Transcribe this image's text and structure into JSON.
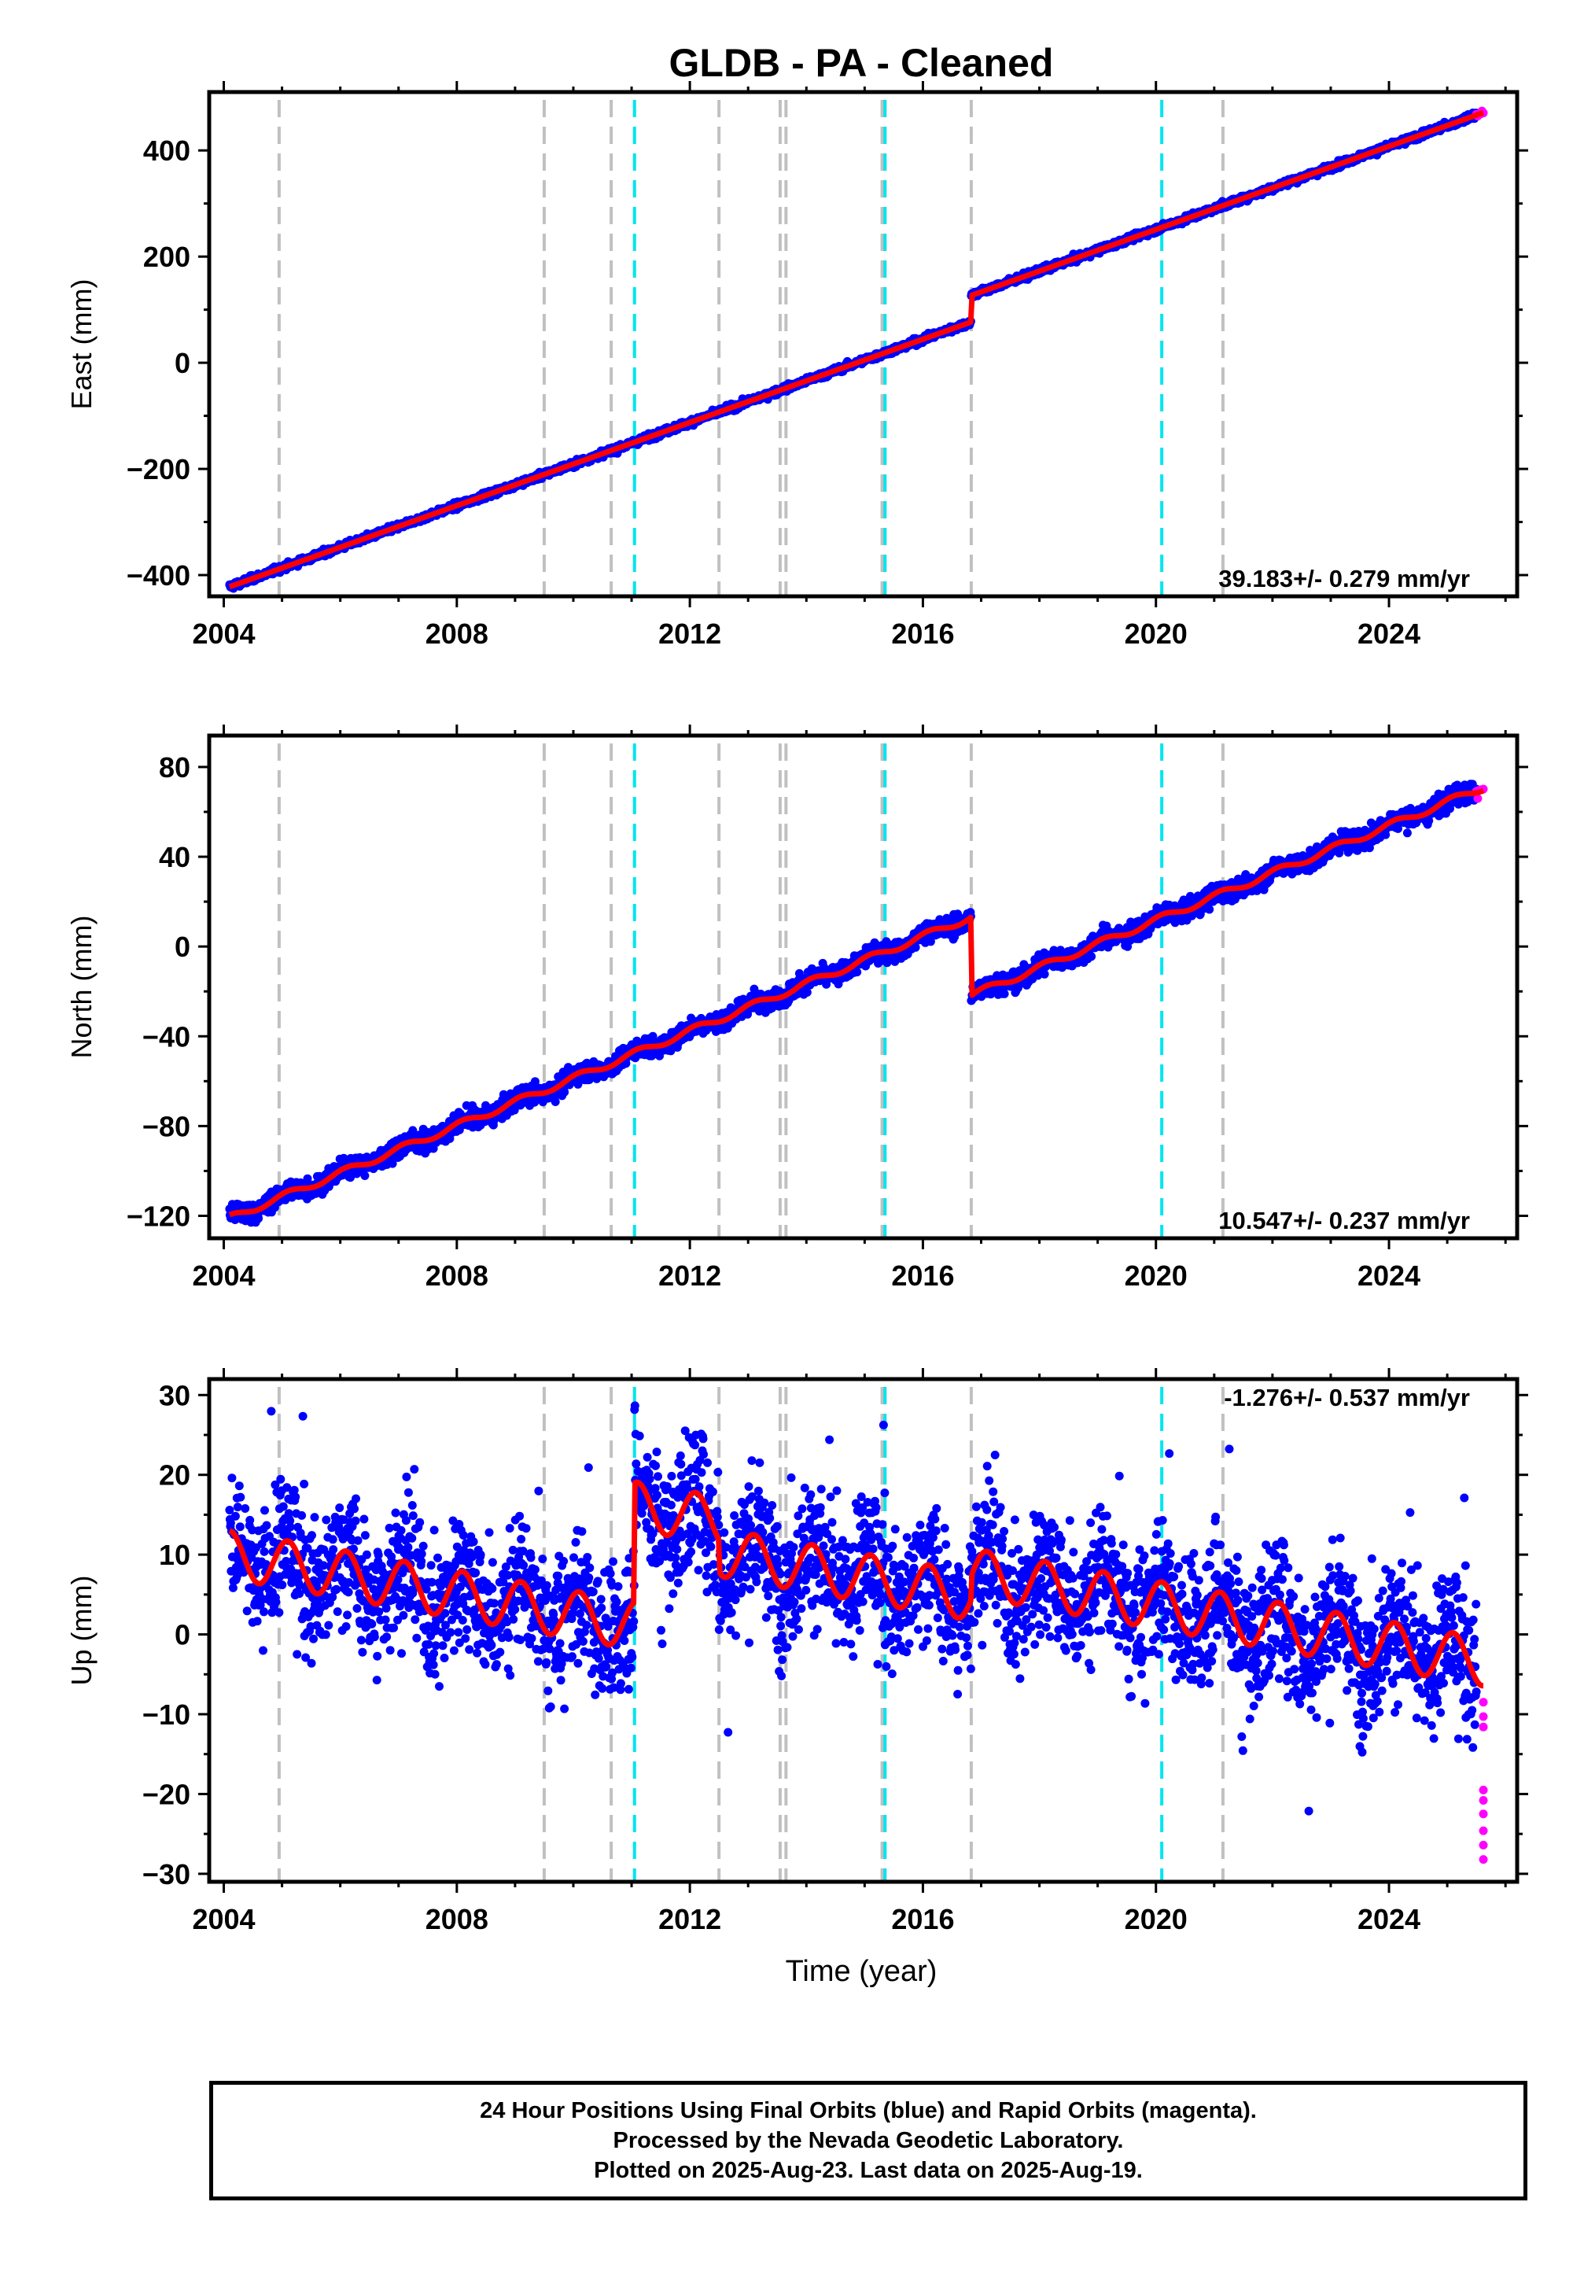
{
  "title": "GLDB  - PA - Cleaned",
  "xlabel": "Time (year)",
  "footer": {
    "line1": "24 Hour Positions Using Final Orbits (blue) and Rapid Orbits (magenta).",
    "line2": "Processed by the Nevada Geodetic Laboratory.",
    "line3": "Plotted on 2025-Aug-23. Last data on 2025-Aug-19."
  },
  "colors": {
    "final_orbits": "#0000ff",
    "rapid_orbits": "#ff00ff",
    "model": "#ff0000",
    "event_gray": "#c0c0c0",
    "event_cyan": "#00e5ee"
  },
  "events": {
    "gray": [
      2004.95,
      2009.5,
      2010.65,
      2012.5,
      2013.55,
      2013.65,
      2015.3,
      2016.83,
      2021.15
    ],
    "cyan": [
      2011.05,
      2015.35,
      2020.1
    ]
  },
  "chart_data": [
    {
      "type": "scatter",
      "name": "East",
      "ylabel": "East (mm)",
      "rate_label": "39.183+/- 0.279 mm/yr",
      "xlim": [
        2003.75,
        2026.2
      ],
      "ylim": [
        -440,
        510
      ],
      "xticks": [
        2004,
        2008,
        2012,
        2016,
        2020,
        2024
      ],
      "yticks": [
        -400,
        -200,
        0,
        200,
        400
      ],
      "ytick_labels": [
        "−400",
        "−200",
        "0",
        "200",
        "400"
      ],
      "x_start": 2004.1,
      "x_end": 2025.62,
      "rate": 39.183,
      "y_at_start": -422,
      "offsets": [
        {
          "x": 2016.83,
          "dy": 50
        }
      ],
      "seasonal_amplitude": 0,
      "scatter_sd": 3,
      "outlier_range": 0,
      "rapid_tail": [
        2025.5,
        2025.62
      ]
    },
    {
      "type": "scatter",
      "name": "North",
      "ylabel": "North (mm)",
      "rate_label": "10.547+/- 0.237 mm/yr",
      "xlim": [
        2003.75,
        2026.2
      ],
      "ylim": [
        -130,
        94
      ],
      "xticks": [
        2004,
        2008,
        2012,
        2016,
        2020,
        2024
      ],
      "yticks": [
        -120,
        -80,
        -40,
        0,
        40,
        80
      ],
      "ytick_labels": [
        "−120",
        "−80",
        "−40",
        "0",
        "40",
        "80"
      ],
      "x_start": 2004.1,
      "x_end": 2025.62,
      "rate": 10.547,
      "y_at_start": -121,
      "offsets": [
        {
          "x": 2016.83,
          "dy": -35
        }
      ],
      "seasonal_amplitude": 1.5,
      "scatter_sd": 2.2,
      "outlier_range": 0,
      "rapid_tail": [
        2025.5,
        2025.62
      ]
    },
    {
      "type": "scatter",
      "name": "Up",
      "ylabel": "Up (mm)",
      "rate_label": "-1.276+/- 0.537 mm/yr",
      "xlim": [
        2003.75,
        2026.2
      ],
      "ylim": [
        -31,
        32
      ],
      "xticks": [
        2004,
        2008,
        2012,
        2016,
        2020,
        2024
      ],
      "yticks": [
        -30,
        -20,
        -10,
        0,
        10,
        20,
        30
      ],
      "ytick_labels": [
        "−30",
        "−20",
        "−10",
        "0",
        "10",
        "20",
        "30"
      ],
      "x_start": 2004.1,
      "x_end": 2025.62,
      "rate": -1.276,
      "y_at_start": 10,
      "offsets": [
        {
          "x": 2011.05,
          "dy": 15
        },
        {
          "x": 2012.5,
          "dy": -4
        },
        {
          "x": 2016.83,
          "dy": 3
        }
      ],
      "seasonal_amplitude": 3,
      "scatter_sd": 4.2,
      "outlier_range": 20,
      "rapid_tail": [
        2025.5,
        2025.62
      ],
      "rapid_values": [
        -8.5,
        -10.3,
        -11.6,
        -19.5,
        -20.8,
        -22.5,
        -24.6,
        -26.4,
        -28.2
      ]
    }
  ]
}
